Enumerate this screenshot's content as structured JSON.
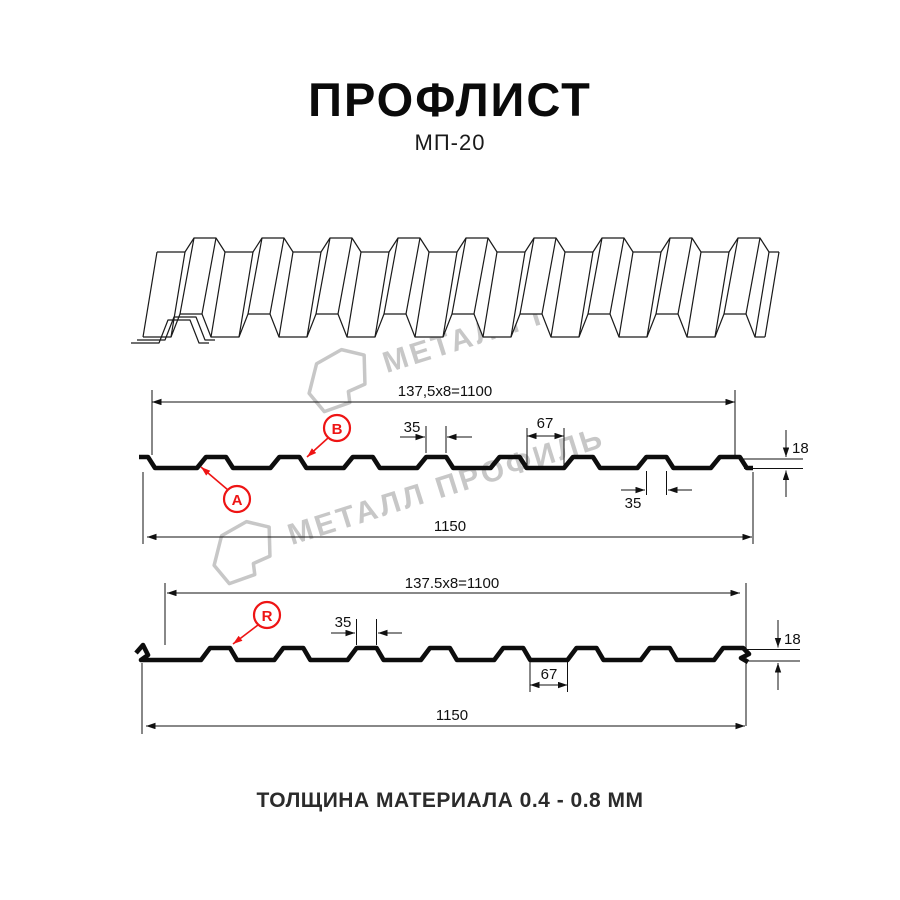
{
  "title": {
    "main": "ПРОФЛИСТ",
    "model": "МП-20"
  },
  "watermark": {
    "brand": "МЕТАЛЛ ПРОФИЛЬ"
  },
  "footer": {
    "thickness_note": "ТОЛЩИНА МАТЕРИАЛА 0.4 - 0.8 ММ"
  },
  "section_top": {
    "pitch_formula": "137,5x8=1100",
    "rib_top_width": "35",
    "valley_width": "67",
    "profile_height": "18",
    "rib_bottom_width": "35",
    "overall_width": "1150",
    "label_a": "A",
    "label_b": "B"
  },
  "section_bottom": {
    "pitch_formula": "137.5x8=1100",
    "rib_top_width": "35",
    "valley_width": "67",
    "profile_height": "18",
    "overall_width": "1150",
    "label_r": "R"
  },
  "colors": {
    "accent_red": "#ee1414",
    "watermark_gray": "#c7c7c7",
    "line_black": "#111111"
  }
}
